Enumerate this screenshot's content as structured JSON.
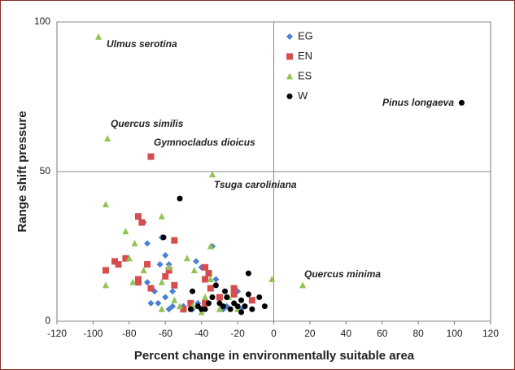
{
  "chart_data": {
    "type": "scatter",
    "x_label": "Percent change in environmentally suitable area",
    "y_label": "Range shift pressure",
    "xlim": [
      -120,
      120
    ],
    "xticks": [
      -120,
      -100,
      -80,
      -60,
      -40,
      -20,
      0,
      20,
      40,
      60,
      80,
      100,
      120
    ],
    "ylim": [
      0,
      100
    ],
    "yticks": [
      0,
      50,
      100
    ],
    "grid": true,
    "vline": 0,
    "legend": "top-center",
    "annotations": [
      "Ulmus serotina",
      "Quercus similis",
      "Gymnocladus dioicus",
      "Tsuga caroliniana",
      "Pinus longaeva",
      "Quercus minima"
    ],
    "series": [
      {
        "name": "EG",
        "color": "#4a7fd4",
        "marker": "diamond",
        "x": [
          -72,
          -70,
          -62,
          -60,
          -63,
          -58,
          -34,
          -43,
          -40,
          -32,
          -70,
          -66,
          -68,
          -64,
          -60,
          -56,
          -56,
          -50,
          -45,
          -42,
          -38,
          -28,
          -26,
          -18,
          -20,
          -58
        ],
        "values": [
          33,
          26,
          28,
          22,
          19,
          19,
          25,
          20,
          18,
          14,
          13,
          10,
          6,
          6,
          8,
          10,
          5,
          5,
          4,
          6,
          7,
          4,
          5,
          4,
          10,
          4
        ]
      },
      {
        "name": "EN",
        "color": "#d64d4d",
        "marker": "square",
        "x": [
          -68,
          -93,
          -88,
          -86,
          -82,
          -75,
          -73,
          -70,
          -75,
          -75,
          -68,
          -55,
          -58,
          -55,
          -60,
          -38,
          -36,
          -38,
          -35,
          -30,
          -22,
          -22,
          -12,
          -38,
          -46,
          -50
        ],
        "values": [
          55,
          17,
          20,
          19,
          21,
          35,
          33,
          19,
          14,
          13,
          11,
          27,
          17,
          12,
          15,
          18,
          16,
          14,
          11,
          8,
          11,
          9,
          7,
          6,
          6,
          4
        ]
      },
      {
        "name": "ES",
        "color": "#92c353",
        "marker": "triangle",
        "x": [
          -97,
          -92,
          -34,
          -93,
          -93,
          16,
          -1,
          -62,
          -82,
          -77,
          -80,
          -35,
          -48,
          -58,
          -72,
          -78,
          -62,
          -55,
          -62,
          -45,
          -38,
          -30,
          -35,
          -44,
          -25,
          -20,
          -52,
          -40
        ],
        "values": [
          95,
          61,
          49,
          39,
          12,
          12,
          14,
          35,
          30,
          26,
          21,
          25,
          21,
          18,
          17,
          13,
          13,
          7,
          4,
          5,
          8,
          4,
          14,
          17,
          8,
          4,
          5,
          3
        ]
      },
      {
        "name": "W",
        "color": "#000000",
        "marker": "circle",
        "x": [
          104,
          -52,
          -61,
          -45,
          -42,
          -40,
          -38,
          -36,
          -34,
          -32,
          -30,
          -28,
          -26,
          -24,
          -22,
          -20,
          -18,
          -16,
          -14,
          -14,
          -12,
          -8,
          -5,
          -18,
          -46,
          -27
        ],
        "values": [
          73,
          41,
          28,
          10,
          5,
          4,
          4,
          6,
          8,
          12,
          6,
          5,
          8,
          4,
          6,
          5,
          7,
          5,
          16,
          9,
          4,
          8,
          5,
          3,
          4,
          10
        ]
      }
    ]
  }
}
